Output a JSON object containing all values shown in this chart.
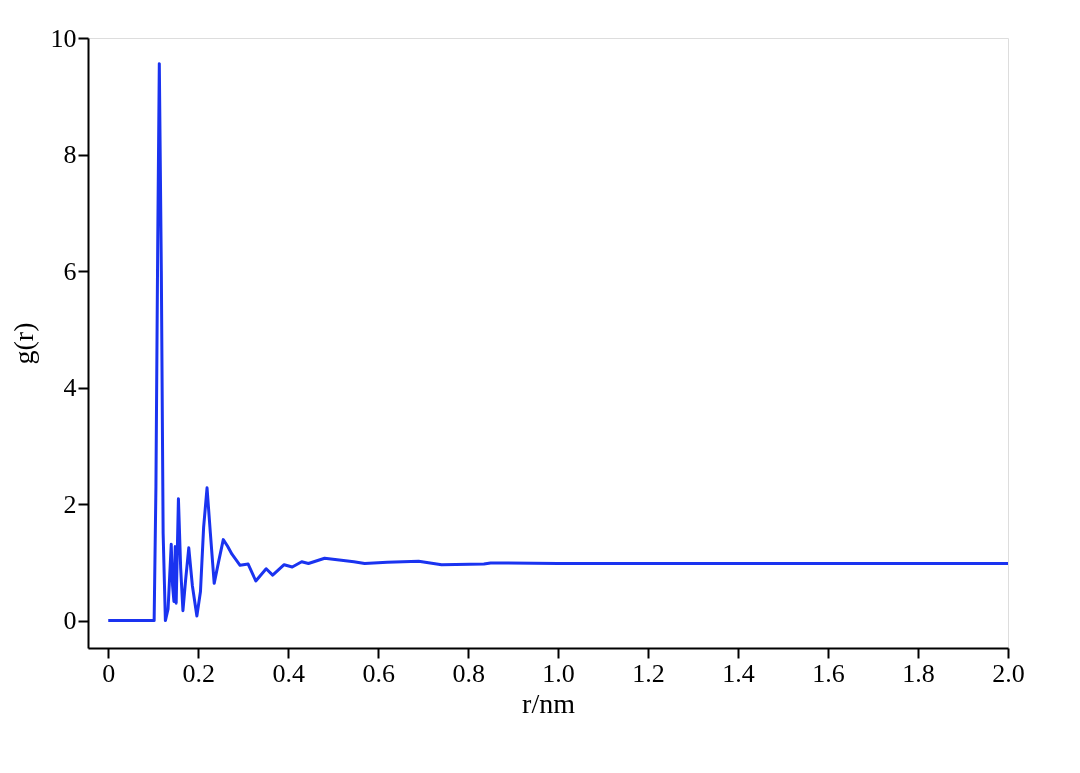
{
  "chart_data": {
    "type": "line",
    "xlabel": "r/nm",
    "ylabel": "g(r)",
    "xlim": [
      -0.045,
      2.0
    ],
    "ylim": [
      -0.47,
      10
    ],
    "xticks": [
      0,
      0.2,
      0.4,
      0.6,
      0.8,
      {
        "value": 1,
        "label": "1.0"
      },
      1.2,
      1.4,
      1.6,
      1.8,
      {
        "value": 2,
        "label": "2.0"
      }
    ],
    "yticks": [
      0,
      2,
      4,
      6,
      8,
      10
    ],
    "grid": false,
    "marker": "none",
    "line_style": "solid",
    "series": [
      {
        "color": "#1a33f0",
        "x": [
          0,
          0.05,
          0.102,
          0.106,
          0.11,
          0.1135,
          0.118,
          0.122,
          0.127,
          0.133,
          0.14,
          0.143,
          0.146,
          0.149,
          0.151,
          0.156,
          0.161,
          0.166,
          0.172,
          0.179,
          0.187,
          0.197,
          0.205,
          0.212,
          0.2196,
          0.227,
          0.2355,
          0.245,
          0.2557,
          0.265,
          0.275,
          0.293,
          0.311,
          0.328,
          0.351,
          0.3655,
          0.391,
          0.409,
          0.43,
          0.445,
          0.481,
          0.546,
          0.57,
          0.62,
          0.69,
          0.741,
          0.835,
          0.85,
          1.0,
          1.2,
          1.5,
          1.8,
          2.0
        ],
        "values": [
          0,
          0,
          0,
          2.3,
          6.5,
          9.56,
          6.0,
          1.5,
          0,
          0.2,
          1.31,
          0.6,
          0.33,
          1.27,
          0.3,
          2.09,
          0.9,
          0.17,
          0.7,
          1.25,
          0.6,
          0.08,
          0.5,
          1.6,
          2.28,
          1.5,
          0.64,
          1.0,
          1.39,
          1.28,
          1.14,
          0.95,
          0.97,
          0.68,
          0.89,
          0.78,
          0.96,
          0.92,
          1.01,
          0.98,
          1.07,
          1.01,
          0.98,
          1.0,
          1.02,
          0.96,
          0.97,
          0.99,
          0.98,
          0.98,
          0.98,
          0.98,
          0.98
        ]
      }
    ]
  }
}
